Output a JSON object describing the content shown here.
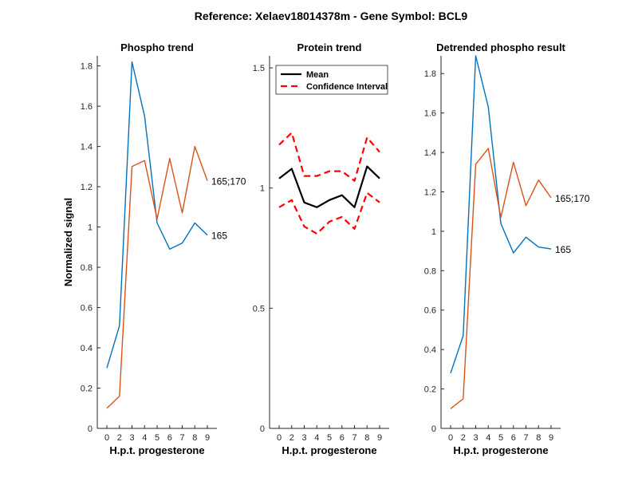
{
  "figure": {
    "suptitle": "Reference:  Xelaev18014378m - Gene Symbol:  BCL9"
  },
  "chart_data": [
    {
      "type": "line",
      "title": "Phospho trend",
      "xlabel": "H.p.t. progesterone",
      "ylabel": "Normalized signal",
      "categories": [
        "0",
        "2",
        "3",
        "4",
        "5",
        "6",
        "7",
        "8",
        "9"
      ],
      "ylim": [
        0,
        1.85
      ],
      "yticks": [
        0,
        0.2,
        0.4,
        0.6,
        0.8,
        1,
        1.2,
        1.4,
        1.6,
        1.8
      ],
      "ytick_labels": [
        "0",
        "0.2",
        "0.4",
        "0.6",
        "0.8",
        "1",
        "1.2",
        "1.4",
        "1.6",
        "1.8"
      ],
      "grid": false,
      "series": [
        {
          "name": "165",
          "color": "#0072BD",
          "values": [
            0.3,
            0.51,
            1.82,
            1.55,
            1.02,
            0.89,
            0.92,
            1.02,
            0.96
          ]
        },
        {
          "name": "165;170",
          "color": "#D95319",
          "values": [
            0.1,
            0.16,
            1.3,
            1.33,
            1.04,
            1.34,
            1.07,
            1.4,
            1.23
          ]
        }
      ]
    },
    {
      "type": "line",
      "title": "Protein trend",
      "xlabel": "H.p.t. progesterone",
      "ylabel": "",
      "categories": [
        "0",
        "2",
        "3",
        "4",
        "5",
        "6",
        "7",
        "8",
        "9"
      ],
      "ylim": [
        0,
        1.55
      ],
      "yticks": [
        0,
        0.5,
        1,
        1.5
      ],
      "ytick_labels": [
        "0",
        "0.5",
        "1",
        "1.5"
      ],
      "grid": false,
      "legend": {
        "placement": "top-left",
        "entries": [
          "Mean",
          "Confidence Interval"
        ]
      },
      "series": [
        {
          "name": "Mean",
          "color": "#000000",
          "style": "solid",
          "values": [
            1.04,
            1.08,
            0.94,
            0.92,
            0.95,
            0.97,
            0.92,
            1.09,
            1.04
          ]
        },
        {
          "name": "Confidence Interval",
          "color": "#FF0000",
          "style": "dashed",
          "values": [
            1.18,
            1.23,
            1.05,
            1.05,
            1.07,
            1.07,
            1.03,
            1.21,
            1.15
          ]
        },
        {
          "name": "Confidence Interval",
          "color": "#FF0000",
          "style": "dashed",
          "values": [
            0.92,
            0.95,
            0.84,
            0.81,
            0.86,
            0.88,
            0.83,
            0.98,
            0.94
          ]
        }
      ]
    },
    {
      "type": "line",
      "title": "Detrended phospho result",
      "xlabel": "H.p.t. progesterone",
      "ylabel": "",
      "categories": [
        "0",
        "2",
        "3",
        "4",
        "5",
        "6",
        "7",
        "8",
        "9"
      ],
      "ylim": [
        0,
        1.89
      ],
      "yticks": [
        0,
        0.2,
        0.4,
        0.6,
        0.8,
        1,
        1.2,
        1.4,
        1.6,
        1.8
      ],
      "ytick_labels": [
        "0",
        "0.2",
        "0.4",
        "0.6",
        "0.8",
        "1",
        "1.2",
        "1.4",
        "1.6",
        "1.8"
      ],
      "grid": false,
      "series": [
        {
          "name": "165",
          "color": "#0072BD",
          "values": [
            0.28,
            0.47,
            1.89,
            1.63,
            1.04,
            0.89,
            0.97,
            0.92,
            0.91
          ]
        },
        {
          "name": "165;170",
          "color": "#D95319",
          "values": [
            0.1,
            0.15,
            1.34,
            1.42,
            1.07,
            1.35,
            1.13,
            1.26,
            1.17
          ]
        }
      ]
    }
  ]
}
